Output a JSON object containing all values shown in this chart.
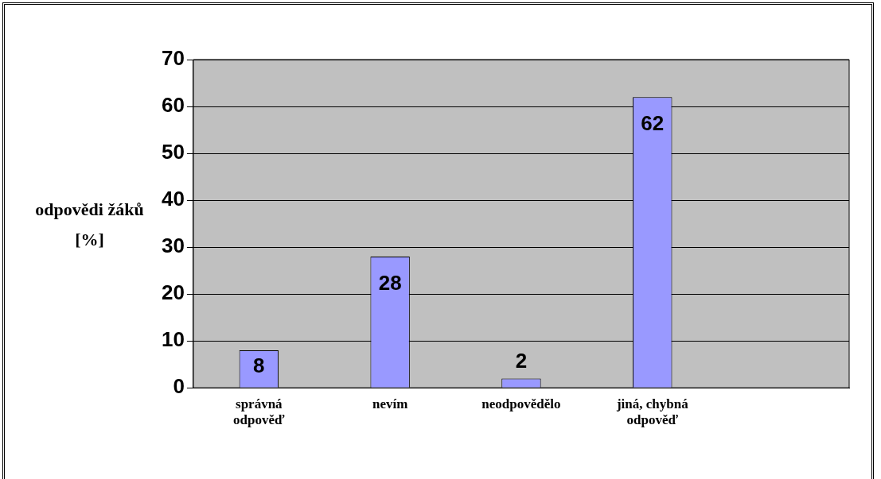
{
  "chart_data": {
    "type": "bar",
    "ylabel": "odpovědi žáků [%]",
    "categories": [
      "správná odpověď",
      "nevím",
      "neodpovědělo",
      "jiná, chybná odpověď",
      null
    ],
    "values": [
      8,
      28,
      2,
      62,
      null
    ],
    "color": "#9999ff",
    "ylim": [
      0,
      70
    ],
    "yticks": [
      0,
      10,
      20,
      30,
      40,
      50,
      60,
      70
    ],
    "grid": "y",
    "data_labels": true,
    "legend": false
  }
}
